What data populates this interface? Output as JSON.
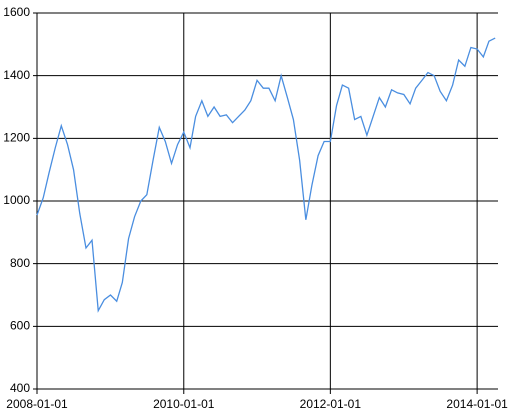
{
  "chart_data": {
    "type": "line",
    "x": [
      "2008-01-01",
      "2008-02-01",
      "2008-03-01",
      "2008-04-01",
      "2008-05-01",
      "2008-06-01",
      "2008-07-01",
      "2008-08-01",
      "2008-09-01",
      "2008-10-01",
      "2008-11-01",
      "2008-12-01",
      "2009-01-01",
      "2009-02-01",
      "2009-03-01",
      "2009-04-01",
      "2009-05-01",
      "2009-06-01",
      "2009-07-01",
      "2009-08-01",
      "2009-09-01",
      "2009-10-01",
      "2009-11-01",
      "2009-12-01",
      "2010-01-01",
      "2010-02-01",
      "2010-03-01",
      "2010-04-01",
      "2010-05-01",
      "2010-06-01",
      "2010-07-01",
      "2010-08-01",
      "2010-09-01",
      "2010-10-01",
      "2010-11-01",
      "2010-12-01",
      "2011-01-01",
      "2011-02-01",
      "2011-03-01",
      "2011-04-01",
      "2011-05-01",
      "2011-06-01",
      "2011-07-01",
      "2011-08-01",
      "2011-09-01",
      "2011-10-01",
      "2011-11-01",
      "2011-12-01",
      "2012-01-01",
      "2012-02-01",
      "2012-03-01",
      "2012-04-01",
      "2012-05-01",
      "2012-06-01",
      "2012-07-01",
      "2012-08-01",
      "2012-09-01",
      "2012-10-01",
      "2012-11-01",
      "2012-12-01",
      "2013-01-01",
      "2013-02-01",
      "2013-03-01",
      "2013-04-01",
      "2013-05-01",
      "2013-06-01",
      "2013-07-01",
      "2013-08-01",
      "2013-09-01",
      "2013-10-01",
      "2013-11-01",
      "2013-12-01",
      "2014-01-01",
      "2014-02-01",
      "2014-03-01",
      "2014-04-01"
    ],
    "series": [
      {
        "color": "#4a8ee0",
        "values": [
          955,
          1010,
          1090,
          1170,
          1240,
          1180,
          1100,
          960,
          850,
          875,
          650,
          685,
          700,
          680,
          740,
          880,
          950,
          1000,
          1020,
          1130,
          1235,
          1190,
          1120,
          1180,
          1220,
          1170,
          1270,
          1320,
          1270,
          1300,
          1270,
          1275,
          1250,
          1270,
          1290,
          1320,
          1385,
          1360,
          1360,
          1320,
          1400,
          1330,
          1260,
          1130,
          940,
          1050,
          1145,
          1190,
          1190,
          1305,
          1370,
          1360,
          1260,
          1270,
          1210,
          1270,
          1330,
          1300,
          1355,
          1345,
          1340,
          1310,
          1360,
          1385,
          1410,
          1400,
          1350,
          1320,
          1370,
          1450,
          1430,
          1490,
          1485,
          1460,
          1510,
          1520
        ]
      }
    ],
    "xlim": [
      "2008-01-01",
      "2014-04-15"
    ],
    "xticks": [
      "2008-01-01",
      "2010-01-01",
      "2012-01-01",
      "2014-01-01"
    ],
    "ylim": [
      400,
      1600
    ],
    "yticks": [
      400,
      600,
      800,
      1000,
      1200,
      1400,
      1600
    ],
    "grid": true
  }
}
